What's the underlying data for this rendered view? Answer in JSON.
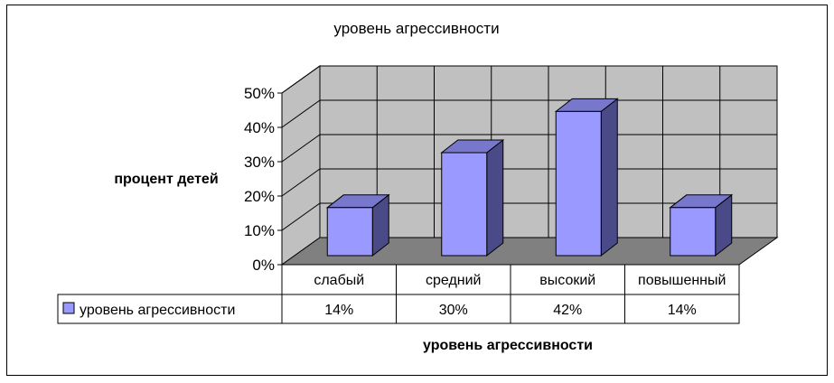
{
  "chart_data": {
    "type": "bar",
    "title": "уровень агрессивности",
    "ylabel": "процент детей",
    "xlabel": "уровень агрессивности",
    "categories": [
      "слабый",
      "средний",
      "высокий",
      "повышенный"
    ],
    "series": [
      {
        "name": "уровень агрессивности",
        "values": [
          14,
          30,
          42,
          14
        ],
        "labels": [
          "14%",
          "30%",
          "42%",
          "14%"
        ],
        "color": "#9999ff"
      }
    ],
    "ylim": [
      0,
      50
    ],
    "yticks": [
      0,
      10,
      20,
      30,
      40,
      50
    ],
    "ytick_labels": [
      "0%",
      "10%",
      "20%",
      "30%",
      "40%",
      "50%"
    ],
    "grid": true,
    "legend": "data-table",
    "style": {
      "wall_color": "#c0c0c0",
      "floor_color": "#808080",
      "bar_front": "#9999ff",
      "bar_top": "#7777cc",
      "bar_side": "#4a4a88"
    }
  }
}
